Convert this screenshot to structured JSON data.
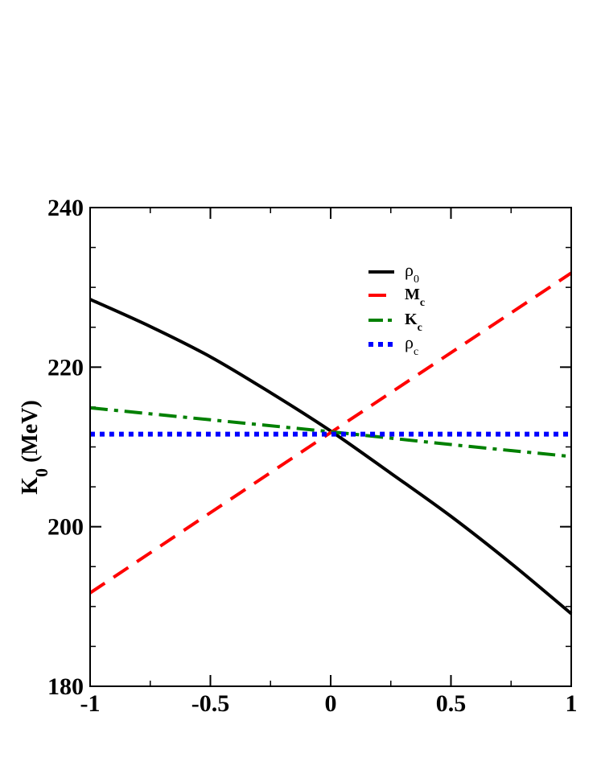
{
  "chart_data": {
    "type": "line",
    "xlabel": "",
    "ylabel": "K0 (MeV)",
    "ylabel_parts": {
      "main": "K",
      "sub": "0",
      "rest": " (MeV)"
    },
    "xlim": [
      -1,
      1
    ],
    "ylim": [
      180,
      240
    ],
    "xticks": [
      -1,
      -0.5,
      0,
      0.5,
      1
    ],
    "xtick_labels": [
      "-1",
      "-0.5",
      "0",
      "0.5",
      "1"
    ],
    "yticks": [
      180,
      200,
      220,
      240
    ],
    "ytick_labels": [
      "180",
      "200",
      "220",
      "240"
    ],
    "x_minor_step": 0.25,
    "y_minor_step": 5,
    "grid": false,
    "legend_position": "upper-right",
    "series": [
      {
        "name": "ρ0",
        "label_main": "ρ",
        "label_sub": "0",
        "label_bold": false,
        "color": "#000000",
        "style": "solid",
        "x": [
          -1,
          -0.75,
          -0.5,
          -0.25,
          0,
          0.25,
          0.5,
          0.75,
          1
        ],
        "y": [
          228.5,
          225.1,
          221.3,
          216.8,
          212.0,
          206.7,
          201.3,
          195.4,
          189.1
        ]
      },
      {
        "name": "Mc",
        "label_main": "M",
        "label_sub": "c",
        "label_bold": true,
        "color": "#ff0000",
        "style": "dashed",
        "x": [
          -1,
          0,
          1
        ],
        "y": [
          191.7,
          211.8,
          231.8
        ]
      },
      {
        "name": "Kc",
        "label_main": "K",
        "label_sub": "c",
        "label_bold": true,
        "color": "#008000",
        "style": "dashdot",
        "x": [
          -1,
          -0.5,
          0,
          0.5,
          1
        ],
        "y": [
          214.9,
          213.4,
          211.9,
          210.3,
          208.8
        ]
      },
      {
        "name": "ρc",
        "label_main": "ρ",
        "label_sub": "c",
        "label_bold": false,
        "color": "#0000ff",
        "style": "dotted",
        "x": [
          -1,
          1
        ],
        "y": [
          211.6,
          211.6
        ]
      }
    ]
  }
}
